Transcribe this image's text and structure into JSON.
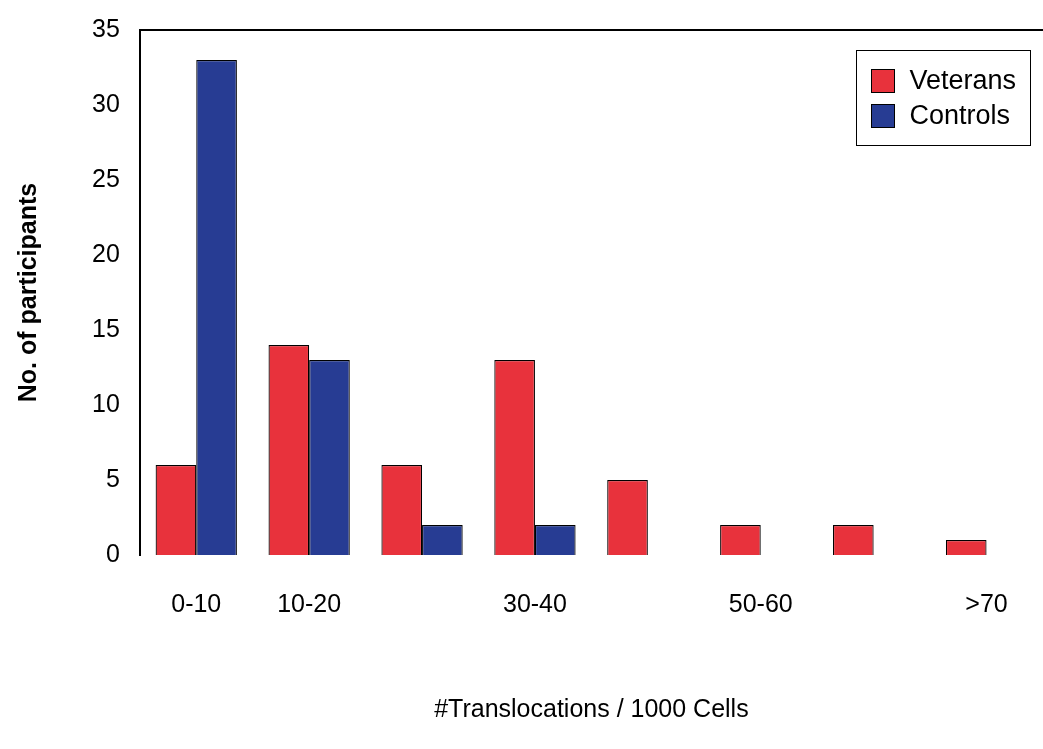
{
  "chart_data": {
    "type": "bar",
    "xlabel": "#Translocations / 1000 Cells",
    "ylabel": "No. of participants",
    "categories": [
      "0-10",
      "10-20",
      null,
      "30-40",
      null,
      "50-60",
      null,
      ">70"
    ],
    "series": [
      {
        "name": "Veterans",
        "color": "#e8323c",
        "values": [
          6,
          14,
          6,
          13,
          5,
          2,
          2,
          1
        ]
      },
      {
        "name": "Controls",
        "color": "#273c93",
        "values": [
          33,
          13,
          2,
          2,
          0,
          0,
          0,
          0
        ]
      }
    ],
    "ylim": [
      0,
      35
    ],
    "yticks": [
      0,
      5,
      10,
      15,
      20,
      25,
      30,
      35
    ],
    "grid": false,
    "legend": "top right"
  }
}
